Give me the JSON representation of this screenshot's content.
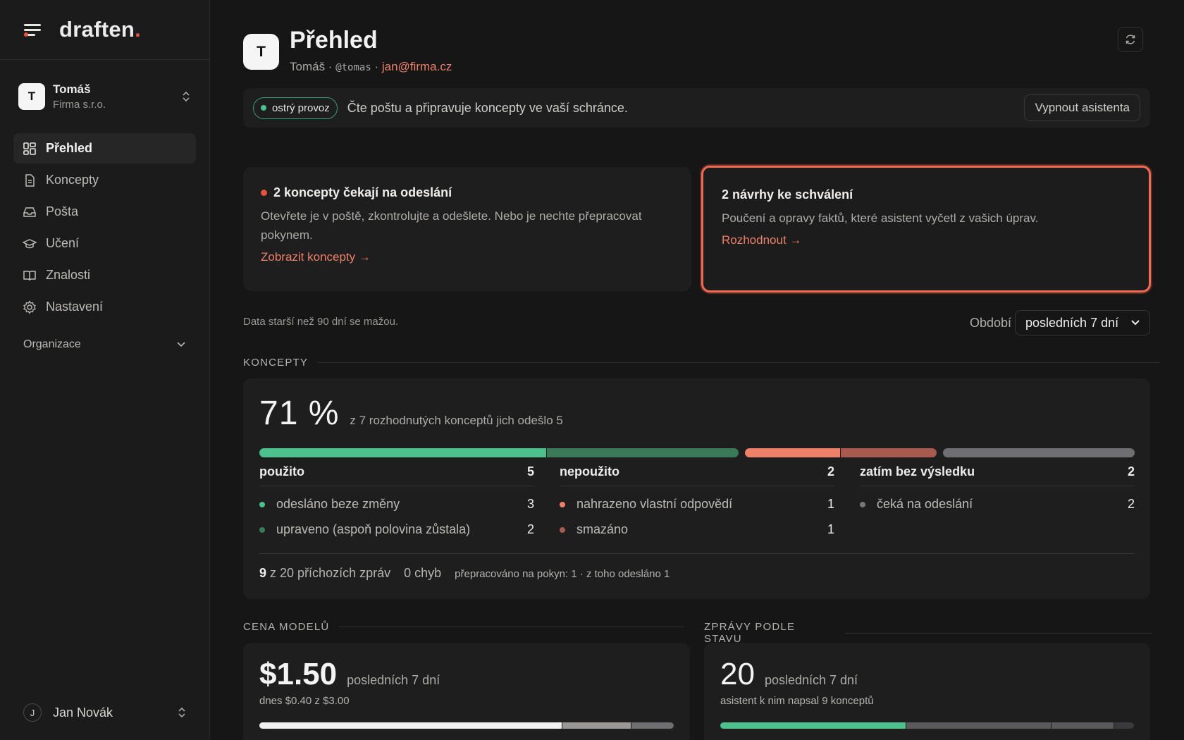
{
  "brand": {
    "name": "draften",
    "dot": "."
  },
  "account": {
    "initial": "T",
    "name": "Tomáš",
    "org": "Firma s.r.o."
  },
  "nav": [
    {
      "label": "Přehled",
      "icon": "dashboard-icon",
      "active": true
    },
    {
      "label": "Koncepty",
      "icon": "document-icon"
    },
    {
      "label": "Pošta",
      "icon": "inbox-icon"
    },
    {
      "label": "Učení",
      "icon": "graduation-cap-icon"
    },
    {
      "label": "Znalosti",
      "icon": "book-icon"
    },
    {
      "label": "Nastavení",
      "icon": "gear-icon"
    }
  ],
  "org_section": "Organizace",
  "user": {
    "initial": "J",
    "name": "Jan Novák"
  },
  "header": {
    "initial": "T",
    "title": "Přehled",
    "sub_name": "Tomáš",
    "sub_sep": " · ",
    "handle": "@tomas",
    "email": "jan@firma.cz"
  },
  "status": {
    "badge": "ostrý provoz",
    "text": "Čte poštu a připravuje koncepty ve vaší schránce.",
    "button": "Vypnout asistenta"
  },
  "notices": [
    {
      "title": "2 koncepty čekají na odeslání",
      "body": "Otevřete je v poště, zkontrolujte a odešlete. Nebo je nechte přepracovat pokynem.",
      "link": "Zobrazit koncepty →"
    },
    {
      "title": "2 návrhy ke schválení",
      "body": "Poučení a opravy faktů, které asistent vyčetl z vašich úprav.",
      "link": "Rozhodnout →"
    }
  ],
  "retention_note": "Data starší než 90 dní se mažou.",
  "period": {
    "label": "Období",
    "selected": "posledních 7 dní"
  },
  "concepts": {
    "section": "KONCEPTY",
    "percent": "71 %",
    "desc": "z 7 rozhodnutých konceptů jich odešlo 5",
    "columns": [
      {
        "head": "použito",
        "total": "5",
        "items": [
          {
            "label": "odesláno beze změny",
            "count": "3",
            "color": "#4cc08d"
          },
          {
            "label": "upraveno (aspoň polovina zůstala)",
            "count": "2",
            "color": "#3a7a5a"
          }
        ]
      },
      {
        "head": "nepoužito",
        "total": "2",
        "items": [
          {
            "label": "nahrazeno vlastní odpovědí",
            "count": "1",
            "color": "#ee7f69"
          },
          {
            "label": "smazáno",
            "count": "1",
            "color": "#a85a4e"
          }
        ]
      },
      {
        "head": "zatím bez výsledku",
        "total": "2",
        "items": [
          {
            "label": "čeká na odeslání",
            "count": "2",
            "color": "#77777a"
          }
        ]
      }
    ],
    "summary": {
      "num": "9",
      "incoming": "z 20 příchozích zpráv",
      "errors": "0 chyb",
      "reworked": "přepracováno na pokyn: 1 · z toho odesláno 1"
    }
  },
  "model_cost": {
    "section": "CENA MODELŮ",
    "value": "$1.50",
    "period": "posledních 7 dní",
    "sub": "dnes $0.40 z $3.00"
  },
  "messages": {
    "section": "ZPRÁVY PODLE STAVU",
    "value": "20",
    "period": "posledních 7 dní",
    "sub": "asistent k nim napsal 9 konceptů"
  },
  "colors": {
    "accent": "#ee7f69",
    "green": "#4cc08d",
    "dark_green": "#3a7a5a",
    "red": "#ee7f69",
    "dark_red": "#a85a4e",
    "gray": "#77777a"
  }
}
